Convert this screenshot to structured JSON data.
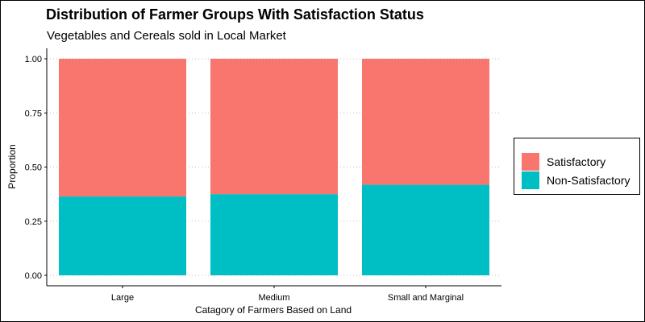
{
  "chart_data": {
    "type": "bar",
    "stacked": true,
    "title": "Distribution of Farmer Groups With Satisfaction Status",
    "subtitle": "Vegetables and Cereals sold in Local Market",
    "xlabel": "Catagory of Farmers Based on Land",
    "ylabel": "Proportion",
    "categories": [
      "Large",
      "Medium",
      "Small and Marginal"
    ],
    "series": [
      {
        "name": "Non-Satisfactory",
        "color": "#00BFC4",
        "values": [
          0.364,
          0.375,
          0.418
        ]
      },
      {
        "name": "Satisfactory",
        "color": "#F8766D",
        "values": [
          0.636,
          0.625,
          0.582
        ]
      }
    ],
    "legend_order": [
      "Satisfactory",
      "Non-Satisfactory"
    ],
    "ylim": [
      0,
      1
    ],
    "yticks": [
      "0.00",
      "0.25",
      "0.50",
      "0.75",
      "1.00"
    ],
    "ytick_values": [
      0,
      0.25,
      0.5,
      0.75,
      1
    ],
    "grid": "horizontal dotted",
    "legend_position": "right"
  }
}
